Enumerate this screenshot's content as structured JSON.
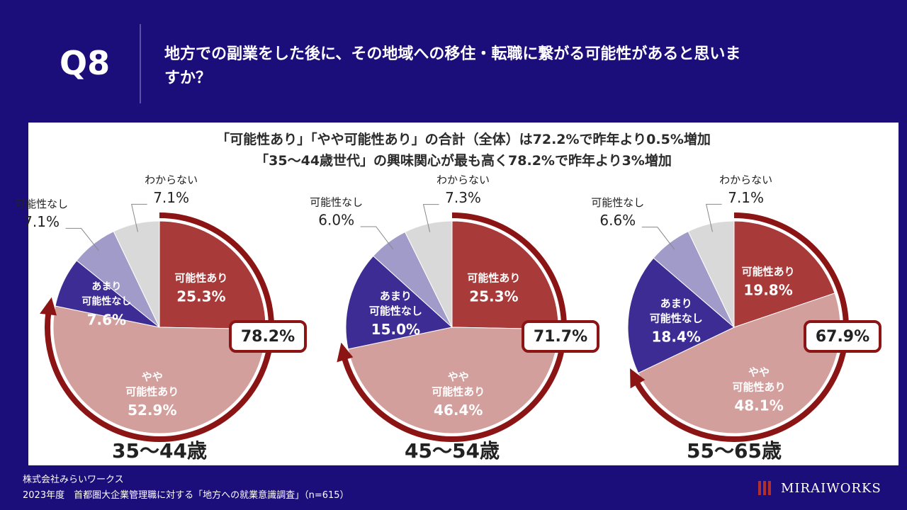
{
  "header": {
    "q_label": "Q8",
    "question_line1": "地方での副業をした後に、その地域への移住・転職に繋がる可能性があると思いま",
    "question_line2": "すか？"
  },
  "panel": {
    "subtitle_line1": "「可能性あり」「やや可能性あり」の合計（全体）は72.2%で昨年より0.5%増加",
    "subtitle_line2": "「35～44歳世代」の興味関心が最も高く78.2%で昨年より3%増加"
  },
  "footer": {
    "company": "株式会社みらいワークス",
    "source": "2023年度　首都圏大企業管理職に対する「地方への就業意識調査」（n=615）",
    "logo_text": "MIRAIWORKS"
  },
  "colors": {
    "background": "#1b0d7a",
    "possible": "#a93a3a",
    "somewhat": "#d39f9d",
    "not_really": "#3d2c93",
    "none": "#a09bc8",
    "unknown": "#d9d9d9",
    "arc": "#8b1515"
  },
  "chart_data": [
    {
      "type": "pie",
      "title": "35～44歳",
      "categories": [
        "可能性あり",
        "やや可能性あり",
        "あまり可能性なし",
        "可能性なし",
        "わからない"
      ],
      "display_labels": [
        "可能性あり",
        "やや|可能性あり",
        "あまり|可能性なし",
        "可能性なし",
        "わからない"
      ],
      "values": [
        25.3,
        52.9,
        7.6,
        7.1,
        7.1
      ],
      "value_labels": [
        "25.3%",
        "52.9%",
        "7.6%",
        "7.1%",
        "7.1%"
      ],
      "total_label": "78.2%"
    },
    {
      "type": "pie",
      "title": "45～54歳",
      "categories": [
        "可能性あり",
        "やや可能性あり",
        "あまり可能性なし",
        "可能性なし",
        "わからない"
      ],
      "display_labels": [
        "可能性あり",
        "やや|可能性あり",
        "あまり|可能性なし",
        "可能性なし",
        "わからない"
      ],
      "values": [
        25.3,
        46.4,
        15.0,
        6.0,
        7.3
      ],
      "value_labels": [
        "25.3%",
        "46.4%",
        "15.0%",
        "6.0%",
        "7.3%"
      ],
      "total_label": "71.7%"
    },
    {
      "type": "pie",
      "title": "55～65歳",
      "categories": [
        "可能性あり",
        "やや可能性あり",
        "あまり可能性なし",
        "可能性なし",
        "わからない"
      ],
      "display_labels": [
        "可能性あり",
        "やや|可能性あり",
        "あまり|可能性なし",
        "可能性なし",
        "わからない"
      ],
      "values": [
        19.8,
        48.1,
        18.4,
        6.6,
        7.1
      ],
      "value_labels": [
        "19.8%",
        "48.1%",
        "18.4%",
        "6.6%",
        "7.1%"
      ],
      "total_label": "67.9%"
    }
  ]
}
